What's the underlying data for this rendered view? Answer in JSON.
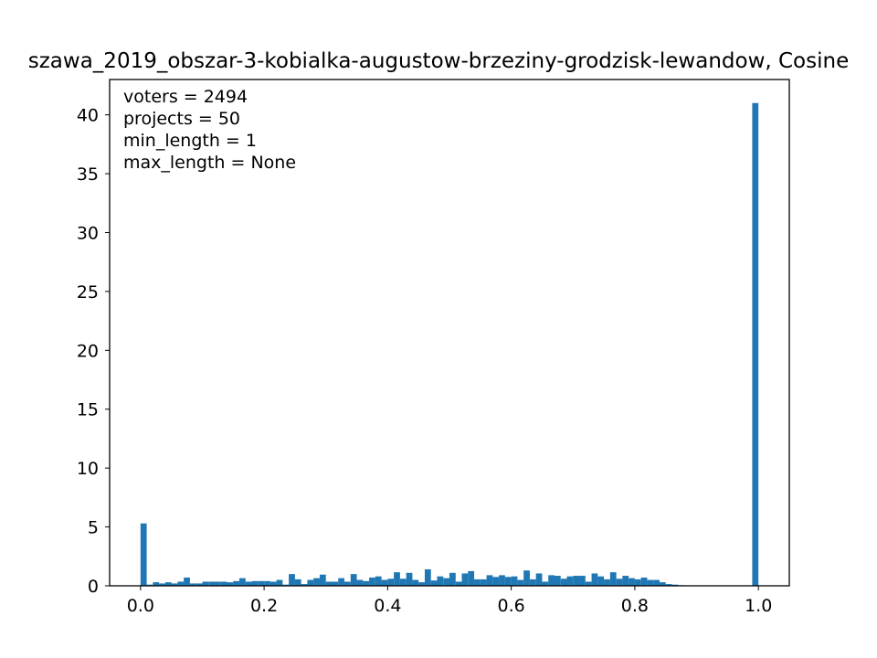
{
  "chart_data": {
    "type": "bar",
    "title": "szawa_2019_obszar-3-kobialka-augustow-brzeziny-grodzisk-lewandow, Cosine",
    "xlabel": "",
    "ylabel": "",
    "xlim": [
      -0.05,
      1.05
    ],
    "ylim": [
      0,
      43
    ],
    "x_ticks": [
      0.0,
      0.2,
      0.4,
      0.6,
      0.8,
      1.0
    ],
    "x_tick_labels": [
      "0.0",
      "0.2",
      "0.4",
      "0.6",
      "0.8",
      "1.0"
    ],
    "y_ticks": [
      0,
      5,
      10,
      15,
      20,
      25,
      30,
      35,
      40
    ],
    "y_tick_labels": [
      "0",
      "5",
      "10",
      "15",
      "20",
      "25",
      "30",
      "35",
      "40"
    ],
    "grid": false,
    "bar_color": "#1f77b4",
    "bin_width": 0.01,
    "bin_starts": [
      0.0,
      0.01,
      0.02,
      0.03,
      0.04,
      0.05,
      0.06,
      0.07,
      0.08,
      0.09,
      0.1,
      0.11,
      0.12,
      0.13,
      0.14,
      0.15,
      0.16,
      0.17,
      0.18,
      0.19,
      0.2,
      0.21,
      0.22,
      0.23,
      0.24,
      0.25,
      0.26,
      0.27,
      0.28,
      0.29,
      0.3,
      0.31,
      0.32,
      0.33,
      0.34,
      0.35,
      0.36,
      0.37,
      0.38,
      0.39,
      0.4,
      0.41,
      0.42,
      0.43,
      0.44,
      0.45,
      0.46,
      0.47,
      0.48,
      0.49,
      0.5,
      0.51,
      0.52,
      0.53,
      0.54,
      0.55,
      0.56,
      0.57,
      0.58,
      0.59,
      0.6,
      0.61,
      0.62,
      0.63,
      0.64,
      0.65,
      0.66,
      0.67,
      0.68,
      0.69,
      0.7,
      0.71,
      0.72,
      0.73,
      0.74,
      0.75,
      0.76,
      0.77,
      0.78,
      0.79,
      0.8,
      0.81,
      0.82,
      0.83,
      0.84,
      0.85,
      0.86,
      0.87,
      0.88,
      0.89,
      0.9,
      0.91,
      0.92,
      0.93,
      0.94,
      0.95,
      0.96,
      0.97,
      0.98,
      0.99
    ],
    "values": [
      5.3,
      0.1,
      0.3,
      0.2,
      0.3,
      0.2,
      0.35,
      0.7,
      0.2,
      0.2,
      0.35,
      0.35,
      0.35,
      0.35,
      0.3,
      0.4,
      0.65,
      0.35,
      0.4,
      0.4,
      0.4,
      0.35,
      0.5,
      0.1,
      1.0,
      0.55,
      0.15,
      0.5,
      0.65,
      0.95,
      0.35,
      0.35,
      0.65,
      0.35,
      1.0,
      0.5,
      0.4,
      0.7,
      0.8,
      0.5,
      0.6,
      1.15,
      0.6,
      1.1,
      0.5,
      0.3,
      1.4,
      0.45,
      0.8,
      0.65,
      1.1,
      0.35,
      1.05,
      1.25,
      0.55,
      0.55,
      0.9,
      0.75,
      0.9,
      0.75,
      0.8,
      0.5,
      1.3,
      0.55,
      1.05,
      0.35,
      0.9,
      0.85,
      0.6,
      0.8,
      0.85,
      0.85,
      0.35,
      1.05,
      0.8,
      0.55,
      1.15,
      0.6,
      0.85,
      0.65,
      0.55,
      0.7,
      0.5,
      0.5,
      0.3,
      0.15,
      0.1,
      0.05,
      0,
      0,
      0,
      0,
      0,
      0,
      0,
      0,
      0,
      0,
      0,
      41.0
    ],
    "annotations": [
      "voters = 2494",
      "projects = 50",
      "min_length = 1",
      "max_length = None"
    ]
  }
}
